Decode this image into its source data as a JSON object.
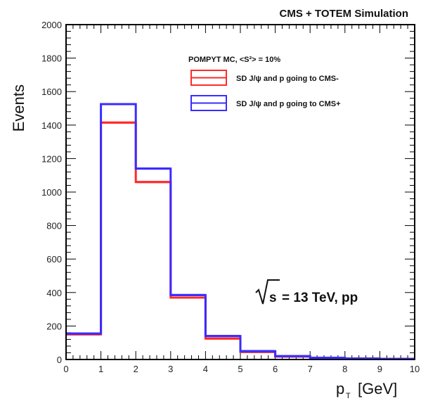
{
  "header_text": "CMS + TOTEM Simulation",
  "energy_label": "= 13 TeV, pp",
  "energy_root": "s",
  "colors": {
    "red": "#ff2a2a",
    "blue": "#3a2cff",
    "frame": "#000000"
  },
  "chart_data": {
    "type": "bar",
    "xlabel_main": "p",
    "xlabel_sub": "T",
    "xlabel_unit": "[GeV]",
    "ylabel": "Events",
    "xlim": [
      0,
      10
    ],
    "ylim": [
      0,
      2000
    ],
    "xticks": [
      0,
      1,
      2,
      3,
      4,
      5,
      6,
      7,
      8,
      9,
      10
    ],
    "yticks": [
      0,
      200,
      400,
      600,
      800,
      1000,
      1200,
      1400,
      1600,
      1800,
      2000
    ],
    "bin_edges": [
      0,
      1,
      2,
      3,
      4,
      5,
      6,
      7,
      8,
      9,
      10
    ],
    "legend_title": "POMPYT MC, <S²> = 10%",
    "series": [
      {
        "name": "SD J/ψ and p going to CMS-",
        "color": "#ff2a2a",
        "values": [
          150,
          1415,
          1060,
          370,
          125,
          45,
          18,
          8,
          5,
          3
        ]
      },
      {
        "name": "SD J/ψ and p going to CMS+",
        "color": "#3a2cff",
        "values": [
          155,
          1525,
          1140,
          385,
          140,
          50,
          20,
          10,
          5,
          3
        ]
      }
    ]
  }
}
